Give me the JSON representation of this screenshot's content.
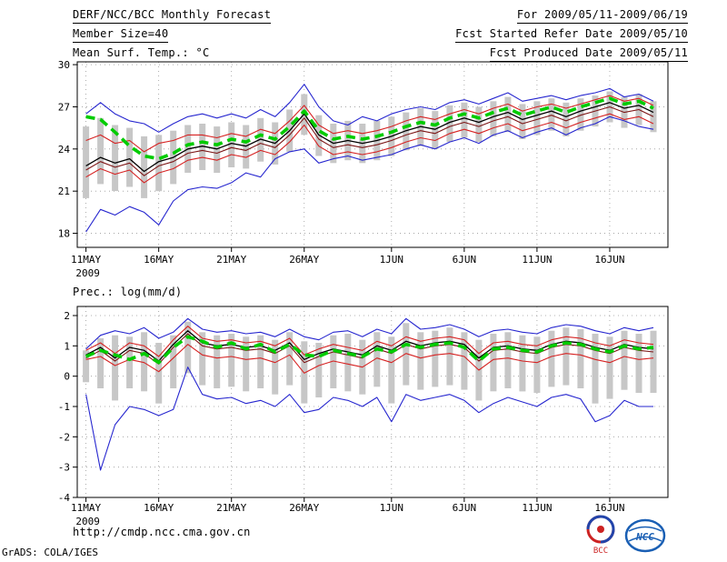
{
  "header": {
    "title": "DERF/NCC/BCC Monthly Forecast",
    "member_size": "Member Size=40",
    "for_range": "For 2009/05/11-2009/06/19",
    "refer_date": "Fcst Started Refer Date 2009/05/10",
    "produced_date": "Fcst Produced Date 2009/05/11"
  },
  "footer": {
    "url": "http://cmdp.ncc.cma.gov.cn",
    "credit": "GrADS: COLA/IGES",
    "logos": [
      {
        "label": "BCC"
      },
      {
        "label": "NCC"
      }
    ]
  },
  "chart_data": [
    {
      "type": "line",
      "title": "Mean Surf. Temp.: °C",
      "xlabel": "",
      "ylabel": "°C",
      "ylim": [
        17,
        30.2
      ],
      "yticks": [
        18,
        21,
        24,
        27,
        30
      ],
      "n_days": 40,
      "x_tick_labels": [
        "11MAY",
        "16MAY",
        "21MAY",
        "26MAY",
        "1JUN",
        "6JUN",
        "11JUN",
        "16JUN"
      ],
      "x_tick_days": [
        0,
        5,
        10,
        15,
        21,
        26,
        31,
        36
      ],
      "x_sub_label": "2009",
      "grid": true,
      "grid_color": "#999999",
      "bars": {
        "color": "#c7c7c7",
        "low": [
          20.5,
          21.5,
          21.0,
          21.3,
          20.5,
          21.0,
          21.5,
          22.3,
          22.5,
          22.3,
          22.7,
          22.6,
          23.1,
          22.9,
          23.8,
          25.0,
          23.5,
          23.0,
          23.2,
          23.0,
          23.2,
          23.5,
          23.9,
          24.2,
          24.0,
          24.5,
          24.8,
          24.5,
          24.9,
          25.2,
          24.7,
          25.0,
          25.3,
          24.9,
          25.3,
          25.6,
          25.9,
          25.5,
          25.7,
          25.2
        ],
        "high": [
          25.6,
          26.2,
          25.7,
          25.5,
          24.9,
          25.0,
          25.3,
          25.7,
          25.8,
          25.6,
          25.9,
          25.7,
          26.2,
          25.9,
          26.8,
          27.9,
          26.4,
          25.8,
          26.0,
          25.8,
          26.0,
          26.3,
          26.6,
          26.9,
          26.7,
          27.1,
          27.3,
          27.0,
          27.4,
          27.7,
          27.2,
          27.4,
          27.6,
          27.3,
          27.6,
          27.8,
          28.1,
          27.7,
          27.9,
          27.4
        ]
      },
      "series": [
        {
          "name": "blue-upper-envelope",
          "color": "#2626cf",
          "width": 1.1,
          "dash": "",
          "values": [
            26.5,
            27.3,
            26.5,
            26.0,
            25.8,
            25.2,
            25.8,
            26.3,
            26.5,
            26.2,
            26.5,
            26.2,
            26.8,
            26.3,
            27.3,
            28.6,
            27.0,
            26.0,
            25.7,
            26.3,
            26.0,
            26.5,
            26.8,
            27.0,
            26.8,
            27.3,
            27.5,
            27.2,
            27.6,
            28.0,
            27.4,
            27.6,
            27.8,
            27.5,
            27.8,
            28.0,
            28.3,
            27.7,
            27.9,
            27.4
          ]
        },
        {
          "name": "blue-lower-envelope",
          "color": "#2626cf",
          "width": 1.1,
          "dash": "",
          "values": [
            18.1,
            19.7,
            19.3,
            19.9,
            19.5,
            18.6,
            20.3,
            21.1,
            21.3,
            21.2,
            21.6,
            22.3,
            22.0,
            23.3,
            23.8,
            24.0,
            23.0,
            23.3,
            23.5,
            23.2,
            23.4,
            23.6,
            24.0,
            24.3,
            24.0,
            24.5,
            24.8,
            24.4,
            25.0,
            25.3,
            24.8,
            25.2,
            25.5,
            25.0,
            25.5,
            25.8,
            26.3,
            26.0,
            25.6,
            25.4
          ]
        },
        {
          "name": "red-upper-band",
          "color": "#d62222",
          "width": 1.1,
          "dash": "",
          "values": [
            24.6,
            25.0,
            24.4,
            24.6,
            23.8,
            24.4,
            24.6,
            25.0,
            25.0,
            24.8,
            25.1,
            24.9,
            25.4,
            25.1,
            26.0,
            27.1,
            25.7,
            25.1,
            25.3,
            25.1,
            25.3,
            25.6,
            26.0,
            26.3,
            26.1,
            26.5,
            26.8,
            26.5,
            26.9,
            27.2,
            26.7,
            27.0,
            27.2,
            26.9,
            27.2,
            27.5,
            27.8,
            27.4,
            27.6,
            27.1
          ]
        },
        {
          "name": "red-lower-band",
          "color": "#d62222",
          "width": 1.1,
          "dash": "",
          "values": [
            22.0,
            22.6,
            22.2,
            22.5,
            21.6,
            22.3,
            22.6,
            23.2,
            23.4,
            23.2,
            23.6,
            23.4,
            23.9,
            23.6,
            24.5,
            25.7,
            24.2,
            23.6,
            23.8,
            23.6,
            23.8,
            24.1,
            24.5,
            24.8,
            24.6,
            25.1,
            25.4,
            25.1,
            25.5,
            25.8,
            25.3,
            25.6,
            25.9,
            25.5,
            25.9,
            26.2,
            26.5,
            26.1,
            26.3,
            25.8
          ]
        },
        {
          "name": "dark-red-line",
          "color": "#7d1616",
          "width": 1.1,
          "dash": "",
          "values": [
            22.5,
            23.1,
            22.7,
            23.0,
            22.1,
            22.8,
            23.1,
            23.7,
            23.9,
            23.7,
            24.1,
            23.9,
            24.4,
            24.1,
            25.0,
            26.2,
            24.7,
            24.1,
            24.3,
            24.1,
            24.3,
            24.6,
            25.0,
            25.3,
            25.1,
            25.6,
            25.9,
            25.6,
            26.0,
            26.3,
            25.8,
            26.1,
            26.4,
            26.0,
            26.4,
            26.7,
            27.0,
            26.6,
            26.8,
            26.3
          ]
        },
        {
          "name": "black-mean-line",
          "color": "#000000",
          "width": 1.3,
          "dash": "",
          "values": [
            22.8,
            23.4,
            23.0,
            23.3,
            22.4,
            23.1,
            23.4,
            24.0,
            24.2,
            24.0,
            24.4,
            24.2,
            24.7,
            24.4,
            25.3,
            26.5,
            25.0,
            24.4,
            24.6,
            24.4,
            24.6,
            24.9,
            25.3,
            25.6,
            25.4,
            25.9,
            26.2,
            25.9,
            26.3,
            26.6,
            26.1,
            26.4,
            26.7,
            26.3,
            26.7,
            27.0,
            27.3,
            26.9,
            27.1,
            26.6
          ]
        },
        {
          "name": "green-dashed-line",
          "color": "#00cc00",
          "width": 3.6,
          "dash": "10,6",
          "values": [
            26.3,
            26.1,
            25.2,
            24.2,
            23.5,
            23.3,
            23.7,
            24.3,
            24.5,
            24.3,
            24.7,
            24.5,
            25.0,
            24.7,
            25.6,
            26.7,
            25.3,
            24.7,
            24.9,
            24.7,
            24.9,
            25.2,
            25.6,
            25.9,
            25.7,
            26.2,
            26.5,
            26.2,
            26.6,
            26.9,
            26.4,
            26.7,
            27.0,
            26.6,
            27.0,
            27.3,
            27.6,
            27.2,
            27.4,
            26.9
          ]
        }
      ]
    },
    {
      "type": "line",
      "title": "Prec.: log(mm/d)",
      "xlabel": "",
      "ylabel": "log(mm/d)",
      "ylim": [
        -4,
        2.3
      ],
      "yticks": [
        -4,
        -3,
        -2,
        -1,
        0,
        1,
        2
      ],
      "n_days": 40,
      "x_tick_labels": [
        "11MAY",
        "16MAY",
        "21MAY",
        "26MAY",
        "1JUN",
        "6JUN",
        "11JUN",
        "16JUN"
      ],
      "x_tick_days": [
        0,
        5,
        10,
        15,
        21,
        26,
        31,
        36
      ],
      "x_sub_label": "2009",
      "grid": true,
      "grid_color": "#999999",
      "bars": {
        "color": "#c7c7c7",
        "low": [
          -0.2,
          -0.4,
          -0.8,
          -0.4,
          -0.5,
          -0.9,
          -0.4,
          0.1,
          -0.3,
          -0.4,
          -0.35,
          -0.5,
          -0.4,
          -0.6,
          -0.3,
          -0.9,
          -0.7,
          -0.4,
          -0.5,
          -0.6,
          -0.35,
          -0.9,
          -0.3,
          -0.45,
          -0.35,
          -0.3,
          -0.45,
          -0.8,
          -0.5,
          -0.4,
          -0.5,
          -0.55,
          -0.35,
          -0.3,
          -0.4,
          -0.9,
          -0.75,
          -0.45,
          -0.55,
          -0.55
        ],
        "high": [
          0.85,
          1.25,
          1.35,
          1.3,
          1.45,
          1.1,
          1.35,
          1.8,
          1.45,
          1.35,
          1.4,
          1.3,
          1.35,
          1.2,
          1.45,
          1.15,
          1.1,
          1.35,
          1.4,
          1.2,
          1.45,
          1.3,
          1.75,
          1.45,
          1.5,
          1.6,
          1.45,
          1.2,
          1.4,
          1.45,
          1.35,
          1.3,
          1.5,
          1.6,
          1.55,
          1.4,
          1.3,
          1.5,
          1.4,
          1.5
        ]
      },
      "series": [
        {
          "name": "blue-upper-envelope",
          "color": "#2626cf",
          "width": 1.1,
          "dash": "",
          "values": [
            0.9,
            1.35,
            1.5,
            1.4,
            1.6,
            1.25,
            1.45,
            1.9,
            1.55,
            1.45,
            1.5,
            1.4,
            1.45,
            1.3,
            1.55,
            1.3,
            1.2,
            1.45,
            1.5,
            1.3,
            1.55,
            1.4,
            1.9,
            1.55,
            1.6,
            1.7,
            1.55,
            1.3,
            1.5,
            1.55,
            1.45,
            1.4,
            1.6,
            1.7,
            1.65,
            1.5,
            1.4,
            1.6,
            1.5,
            1.6
          ]
        },
        {
          "name": "blue-lower-envelope",
          "color": "#2626cf",
          "width": 1.1,
          "dash": "",
          "values": [
            -0.6,
            -3.1,
            -1.6,
            -1.0,
            -1.1,
            -1.3,
            -1.1,
            0.3,
            -0.6,
            -0.75,
            -0.7,
            -0.9,
            -0.8,
            -1.0,
            -0.6,
            -1.2,
            -1.1,
            -0.7,
            -0.8,
            -1.0,
            -0.7,
            -1.5,
            -0.6,
            -0.8,
            -0.7,
            -0.6,
            -0.8,
            -1.2,
            -0.9,
            -0.7,
            -0.85,
            -1.0,
            -0.7,
            -0.6,
            -0.75,
            -1.5,
            -1.3,
            -0.8,
            -1.0,
            -1.0
          ]
        },
        {
          "name": "red-upper-band",
          "color": "#d62222",
          "width": 1.1,
          "dash": "",
          "values": [
            0.85,
            1.1,
            0.75,
            1.1,
            1.0,
            0.65,
            1.2,
            1.65,
            1.25,
            1.15,
            1.2,
            1.1,
            1.15,
            1.0,
            1.25,
            0.7,
            0.9,
            1.05,
            0.95,
            0.85,
            1.15,
            1.0,
            1.3,
            1.15,
            1.25,
            1.3,
            1.2,
            0.75,
            1.1,
            1.15,
            1.05,
            1.0,
            1.2,
            1.3,
            1.25,
            1.1,
            1.0,
            1.2,
            1.1,
            1.05
          ]
        },
        {
          "name": "red-lower-band",
          "color": "#d62222",
          "width": 1.1,
          "dash": "",
          "values": [
            0.55,
            0.65,
            0.35,
            0.55,
            0.45,
            0.15,
            0.6,
            1.05,
            0.7,
            0.6,
            0.65,
            0.55,
            0.6,
            0.45,
            0.7,
            0.1,
            0.35,
            0.5,
            0.4,
            0.3,
            0.6,
            0.45,
            0.75,
            0.6,
            0.7,
            0.75,
            0.65,
            0.2,
            0.55,
            0.6,
            0.5,
            0.45,
            0.65,
            0.75,
            0.7,
            0.55,
            0.45,
            0.65,
            0.55,
            0.6
          ]
        },
        {
          "name": "dark-red-line",
          "color": "#7d1616",
          "width": 1.1,
          "dash": "",
          "values": [
            0.6,
            0.85,
            0.5,
            0.85,
            0.75,
            0.4,
            0.95,
            1.4,
            1.0,
            0.9,
            0.95,
            0.85,
            0.9,
            0.75,
            1.0,
            0.45,
            0.65,
            0.8,
            0.7,
            0.6,
            0.9,
            0.75,
            1.05,
            0.9,
            1.0,
            1.05,
            0.95,
            0.5,
            0.85,
            0.9,
            0.8,
            0.75,
            0.95,
            1.05,
            1.0,
            0.85,
            0.75,
            0.95,
            0.85,
            0.8
          ]
        },
        {
          "name": "black-mean-line",
          "color": "#000000",
          "width": 1.3,
          "dash": "",
          "values": [
            0.7,
            0.95,
            0.6,
            0.95,
            0.85,
            0.5,
            1.05,
            1.5,
            1.1,
            1.0,
            1.05,
            0.95,
            1.0,
            0.85,
            1.1,
            0.55,
            0.75,
            0.9,
            0.8,
            0.7,
            1.0,
            0.85,
            1.15,
            1.0,
            1.1,
            1.15,
            1.05,
            0.6,
            0.95,
            1.0,
            0.9,
            0.85,
            1.05,
            1.15,
            1.1,
            0.95,
            0.85,
            1.05,
            0.95,
            0.9
          ]
        },
        {
          "name": "green-dashed-line",
          "color": "#00cc00",
          "width": 3.6,
          "dash": "10,6",
          "values": [
            0.65,
            0.85,
            0.7,
            0.55,
            0.75,
            0.45,
            0.95,
            1.3,
            1.15,
            0.95,
            1.1,
            0.9,
            1.05,
            0.8,
            1.05,
            0.7,
            0.65,
            0.85,
            0.75,
            0.65,
            0.9,
            0.8,
            1.05,
            0.95,
            1.05,
            1.1,
            0.95,
            0.5,
            0.9,
            0.95,
            0.85,
            0.8,
            1.0,
            1.1,
            1.05,
            0.9,
            0.8,
            1.0,
            0.9,
            0.95
          ]
        }
      ]
    }
  ]
}
